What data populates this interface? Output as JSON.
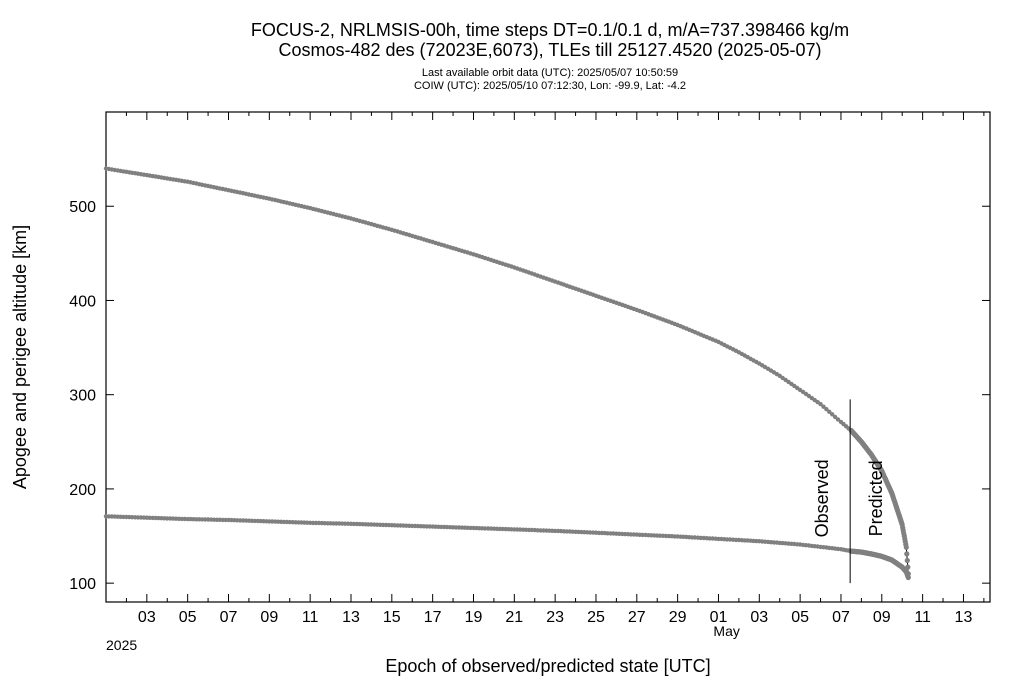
{
  "chart_data": {
    "type": "line",
    "title_lines": [
      "FOCUS-2, NRLMSIS-00h, time steps DT=0.1/0.1 d, m/A=737.398466 kg/m",
      "Cosmos-482 des (72023E,6073), TLEs till 25127.4520 (2025-05-07)"
    ],
    "subtitle_lines": [
      "Last available orbit data (UTC): 2025/05/07 10:50:59",
      "COIW (UTC): 2025/05/10 07:12:30, Lon: -99.9, Lat:  -4.2"
    ],
    "xlabel": "Epoch of observed/predicted state [UTC]",
    "ylabel": "Apogee and perigee altitude [km]",
    "x_year_label": "2025",
    "x_month_label": "May",
    "x_ticks": [
      {
        "day": 3,
        "label": "03"
      },
      {
        "day": 5,
        "label": "05"
      },
      {
        "day": 7,
        "label": "07"
      },
      {
        "day": 9,
        "label": "09"
      },
      {
        "day": 11,
        "label": "11"
      },
      {
        "day": 13,
        "label": "13"
      },
      {
        "day": 15,
        "label": "15"
      },
      {
        "day": 17,
        "label": "17"
      },
      {
        "day": 19,
        "label": "19"
      },
      {
        "day": 21,
        "label": "21"
      },
      {
        "day": 23,
        "label": "23"
      },
      {
        "day": 25,
        "label": "25"
      },
      {
        "day": 27,
        "label": "27"
      },
      {
        "day": 29,
        "label": "29"
      },
      {
        "day": 31,
        "label": "01"
      },
      {
        "day": 33,
        "label": "03"
      },
      {
        "day": 35,
        "label": "05"
      },
      {
        "day": 37,
        "label": "07"
      },
      {
        "day": 39,
        "label": "09"
      },
      {
        "day": 41,
        "label": "11"
      },
      {
        "day": 43,
        "label": "13"
      }
    ],
    "x_axis_note": "x values are days from 2025-04-01 00:00 UTC (day 31 = May 01)",
    "xlim": [
      1.0,
      44.3
    ],
    "ylim": [
      80,
      600
    ],
    "y_ticks": [
      100,
      200,
      300,
      400,
      500
    ],
    "grid": false,
    "divider_day": 37.45,
    "annotations": {
      "observed": "Observed",
      "predicted": "Predicted"
    },
    "series": [
      {
        "name": "",
        "color": "#808080",
        "x": [
          1.0,
          3.0,
          5.0,
          7.0,
          9.0,
          11.0,
          13.0,
          15.0,
          17.0,
          19.0,
          21.0,
          23.0,
          25.0,
          27.0,
          29.0,
          31.0,
          32.0,
          33.0,
          34.0,
          35.0,
          36.0,
          37.0,
          37.5,
          38.0,
          38.5,
          39.0,
          39.5,
          40.0,
          40.2,
          40.3
        ],
        "y": [
          540,
          533,
          526,
          517,
          508,
          498,
          487,
          475,
          462,
          449,
          435,
          420,
          405,
          390,
          374,
          356,
          345,
          333,
          320,
          305,
          290,
          271,
          262,
          250,
          236,
          219,
          195,
          162,
          138,
          110
        ]
      },
      {
        "name": "",
        "color": "#808080",
        "x": [
          1.0,
          3.0,
          5.0,
          7.0,
          9.0,
          11.0,
          13.0,
          15.0,
          17.0,
          19.0,
          21.0,
          23.0,
          25.0,
          27.0,
          29.0,
          31.0,
          33.0,
          35.0,
          37.0,
          37.5,
          38.0,
          38.5,
          39.0,
          39.5,
          40.0,
          40.2,
          40.3
        ],
        "y": [
          171,
          169.5,
          168,
          167,
          165.5,
          164,
          163,
          161.5,
          160,
          158.5,
          157,
          155.5,
          153.5,
          151.5,
          149.5,
          147,
          144.5,
          141,
          136,
          134,
          133,
          131,
          128.5,
          124.5,
          117,
          112,
          106
        ]
      }
    ]
  }
}
